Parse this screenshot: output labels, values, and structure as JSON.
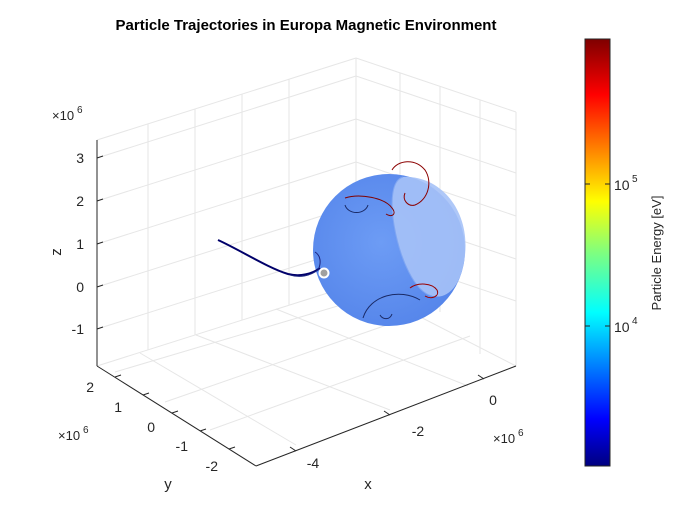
{
  "chart_data": {
    "type": "3d-trajectory",
    "title": "Particle Trajectories in Europa Magnetic Environment",
    "xlabel": "x",
    "ylabel": "y",
    "zlabel": "z",
    "x_exponent": "×10^6",
    "y_exponent": "×10^6",
    "z_exponent": "×10^6",
    "x_ticks": [
      "-4",
      "-2",
      "0"
    ],
    "y_ticks": [
      "2",
      "1",
      "0",
      "-1",
      "-2"
    ],
    "z_ticks": [
      "3",
      "2",
      "1",
      "0",
      "-1"
    ],
    "xlim": [
      -5.5,
      1.0
    ],
    "ylim": [
      -2.6,
      2.6
    ],
    "zlim": [
      -1.8,
      3.5
    ],
    "grid": true,
    "moon": {
      "name": "Europa",
      "color": "#5b8ff2"
    },
    "start_marker_color": "#9a9a9a",
    "colorbar": {
      "label": "Particle Energy [eV]",
      "scale": "log",
      "tick_base": "10",
      "ticks": [
        {
          "exp": "4",
          "value": 10000
        },
        {
          "exp": "5",
          "value": 100000
        }
      ],
      "range": [
        1400,
        800000
      ],
      "colormap": "jet"
    }
  }
}
